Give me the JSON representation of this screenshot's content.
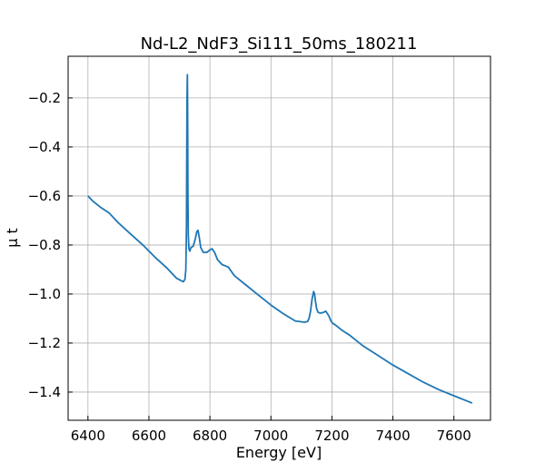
{
  "chart_data": {
    "type": "line",
    "title": "Nd-L2_NdF3_Si111_50ms_180211",
    "xlabel": "Energy [eV]",
    "ylabel": "μ t",
    "xlim": [
      6335,
      7720
    ],
    "ylim": [
      -1.515,
      -0.03
    ],
    "xticks": [
      6400,
      6600,
      6800,
      7000,
      7200,
      7400,
      7600
    ],
    "yticks": [
      -1.4,
      -1.2,
      -1.0,
      -0.8,
      -0.6,
      -0.4,
      -0.2
    ],
    "xtick_labels": [
      "6400",
      "6600",
      "6800",
      "7000",
      "7200",
      "7400",
      "7600"
    ],
    "ytick_labels": [
      "−1.4",
      "−1.2",
      "−1.0",
      "−0.8",
      "−0.6",
      "−0.4",
      "−0.2"
    ],
    "grid": true,
    "series": [
      {
        "color": "#1f77b4",
        "x": [
          6400,
          6415,
          6440,
          6470,
          6500,
          6540,
          6580,
          6620,
          6660,
          6690,
          6705,
          6713,
          6718,
          6721,
          6723,
          6724,
          6725,
          6726,
          6727,
          6728,
          6729,
          6731,
          6734,
          6738,
          6745,
          6752,
          6757,
          6761,
          6765,
          6770,
          6778,
          6790,
          6800,
          6807,
          6815,
          6825,
          6840,
          6860,
          6880,
          6920,
          6960,
          7000,
          7040,
          7080,
          7110,
          7120,
          7125,
          7130,
          7135,
          7140,
          7143,
          7146,
          7150,
          7155,
          7162,
          7172,
          7180,
          7190,
          7197,
          7203,
          7210,
          7230,
          7260,
          7300,
          7350,
          7400,
          7450,
          7500,
          7550,
          7600,
          7660
        ],
        "y": [
          -0.6,
          -0.62,
          -0.645,
          -0.67,
          -0.71,
          -0.755,
          -0.8,
          -0.85,
          -0.895,
          -0.935,
          -0.945,
          -0.95,
          -0.94,
          -0.9,
          -0.72,
          -0.45,
          -0.2,
          -0.105,
          -0.28,
          -0.6,
          -0.76,
          -0.815,
          -0.825,
          -0.81,
          -0.805,
          -0.775,
          -0.745,
          -0.74,
          -0.77,
          -0.81,
          -0.83,
          -0.83,
          -0.82,
          -0.815,
          -0.83,
          -0.86,
          -0.88,
          -0.89,
          -0.925,
          -0.965,
          -1.005,
          -1.045,
          -1.08,
          -1.11,
          -1.115,
          -1.112,
          -1.1,
          -1.07,
          -1.02,
          -0.99,
          -1.0,
          -1.03,
          -1.06,
          -1.075,
          -1.078,
          -1.075,
          -1.07,
          -1.09,
          -1.11,
          -1.12,
          -1.125,
          -1.145,
          -1.17,
          -1.21,
          -1.25,
          -1.29,
          -1.325,
          -1.36,
          -1.39,
          -1.415,
          -1.445
        ]
      }
    ]
  }
}
